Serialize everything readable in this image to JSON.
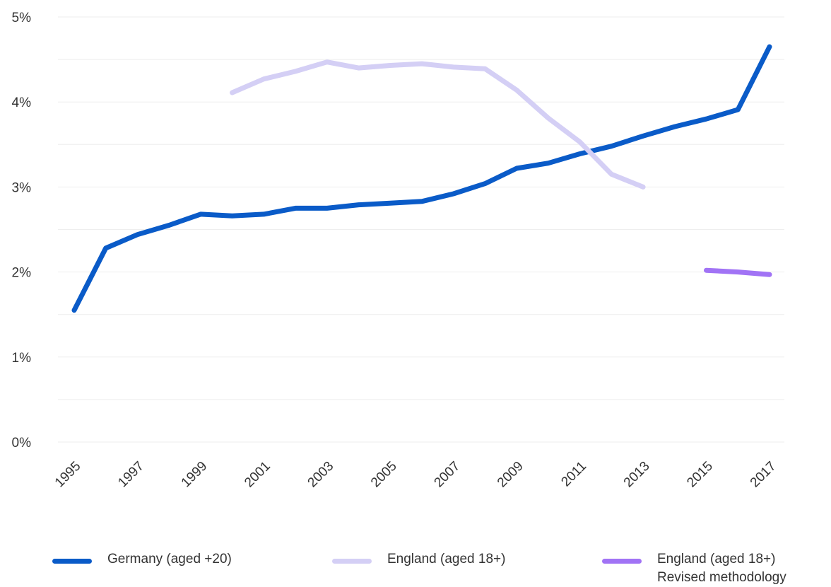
{
  "chart_data": {
    "type": "line",
    "x": [
      1995,
      1996,
      1997,
      1998,
      1999,
      2000,
      2001,
      2002,
      2003,
      2004,
      2005,
      2006,
      2007,
      2008,
      2009,
      2010,
      2011,
      2012,
      2013,
      2014,
      2015,
      2016,
      2017
    ],
    "x_tick_labels": [
      "1995",
      "1997",
      "1999",
      "2001",
      "2003",
      "2005",
      "2007",
      "2009",
      "2011",
      "2013",
      "2015",
      "2017"
    ],
    "y_tick_labels": [
      "0%",
      "1%",
      "2%",
      "3%",
      "4%",
      "5%"
    ],
    "ylim": [
      0,
      5
    ],
    "grid": true,
    "legend_position": "bottom",
    "series": [
      {
        "name": "Germany (aged +20)",
        "color": "#0a5bc8",
        "values": [
          1.55,
          2.28,
          2.44,
          2.55,
          2.68,
          2.66,
          2.68,
          2.75,
          2.75,
          2.79,
          2.81,
          2.83,
          2.92,
          3.04,
          3.22,
          3.28,
          3.39,
          3.48,
          3.6,
          3.71,
          3.8,
          3.91,
          4.65
        ]
      },
      {
        "name": "England (aged 18+)",
        "color": "#d4cff5",
        "values": [
          null,
          null,
          null,
          null,
          null,
          4.11,
          4.27,
          4.36,
          4.47,
          4.4,
          4.43,
          4.45,
          4.41,
          4.39,
          4.14,
          3.81,
          3.53,
          3.15,
          3.0,
          null,
          null,
          null,
          null
        ]
      },
      {
        "name": "England (aged 18+)\nRevised methodology",
        "color": "#a173f5",
        "values": [
          null,
          null,
          null,
          null,
          null,
          null,
          null,
          null,
          null,
          null,
          null,
          null,
          null,
          null,
          null,
          null,
          null,
          null,
          null,
          null,
          2.02,
          2.0,
          1.97
        ]
      }
    ]
  }
}
